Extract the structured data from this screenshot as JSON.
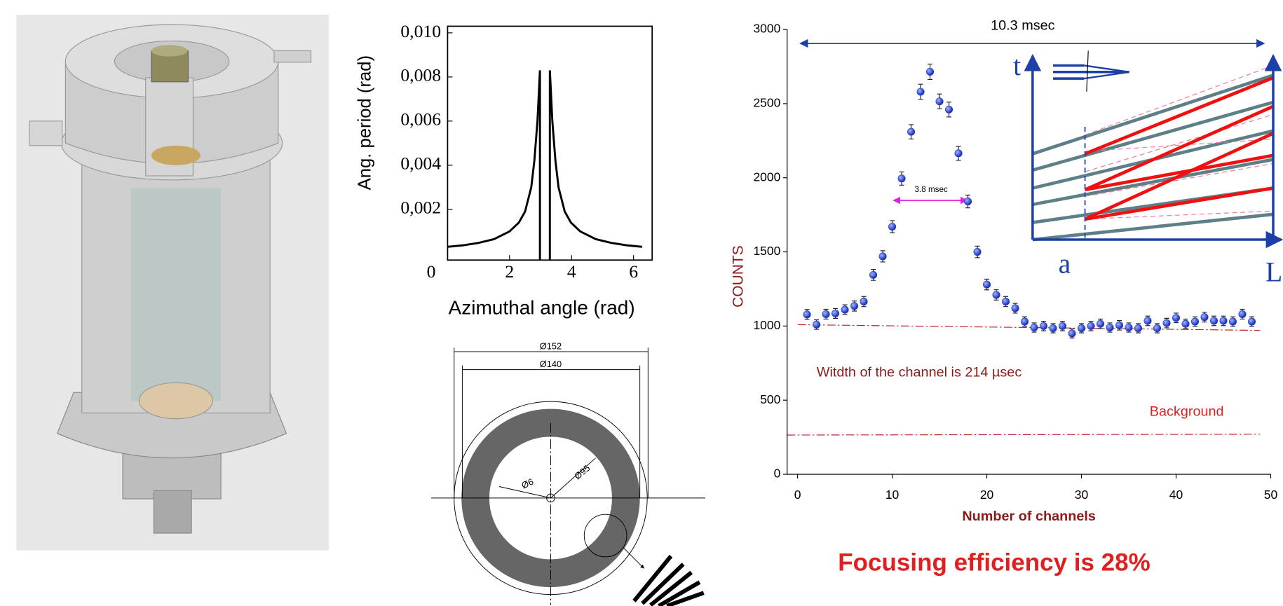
{
  "chart_data": [
    {
      "type": "line",
      "x_label": "Azimuthal angle (rad)",
      "y_label": "Ang. period (rad)",
      "x": [
        0,
        0.5,
        1,
        1.5,
        2,
        2.3,
        2.5,
        2.7,
        2.8,
        2.9,
        2.98,
        2.98,
        3.14,
        3.3,
        3.3,
        3.38,
        3.48,
        3.58,
        3.78,
        3.98,
        4.28,
        4.78,
        5.28,
        5.78,
        6.28
      ],
      "series": [
        {
          "color": "#000000",
          "values": [
            0.0003,
            0.00037,
            0.00048,
            0.00065,
            0.001,
            0.0014,
            0.0019,
            0.003,
            0.0042,
            0.006,
            0.0083,
            -0.0003,
            null,
            -0.0003,
            0.0083,
            0.006,
            0.0042,
            0.003,
            0.0019,
            0.0014,
            0.001,
            0.00065,
            0.00048,
            0.00037,
            0.0003
          ]
        }
      ],
      "xlim": [
        0,
        6.6
      ],
      "ylim": [
        -0.0003,
        0.0103
      ],
      "xticks": [
        0,
        2,
        4,
        6
      ],
      "yticks": [
        {
          "value": 0.002,
          "label": "0,002"
        },
        {
          "value": 0.004,
          "label": "0,004"
        },
        {
          "value": 0.006,
          "label": "0,006"
        },
        {
          "value": 0.008,
          "label": "0,008"
        },
        {
          "value": 0.01,
          "label": "0,010"
        }
      ]
    },
    {
      "type": "scatter",
      "x_label": "Number of channels",
      "y_label": "COUNTS",
      "x": [
        1,
        2,
        3,
        4,
        5,
        6,
        7,
        8,
        9,
        10,
        11,
        12,
        13,
        14,
        15,
        16,
        17,
        18,
        19,
        20,
        21,
        22,
        23,
        24,
        25,
        26,
        27,
        28,
        29,
        30,
        31,
        32,
        33,
        34,
        35,
        36,
        37,
        38,
        39,
        40,
        41,
        42,
        43,
        44,
        45,
        46,
        47,
        48
      ],
      "series": [
        {
          "color": "#1f3fd6",
          "values": [
            1078,
            1010,
            1080,
            1085,
            1110,
            1135,
            1165,
            1345,
            1470,
            1670,
            1995,
            2310,
            2580,
            2715,
            2515,
            2460,
            2165,
            1840,
            1500,
            1280,
            1210,
            1165,
            1120,
            1030,
            990,
            1000,
            985,
            1000,
            950,
            985,
            1000,
            1015,
            990,
            1005,
            990,
            985,
            1035,
            985,
            1020,
            1055,
            1015,
            1030,
            1060,
            1035,
            1035,
            1030,
            1080,
            1030
          ],
          "errors": [
            33,
            32,
            33,
            33,
            33,
            34,
            34,
            37,
            38,
            41,
            45,
            48,
            51,
            52,
            50,
            50,
            47,
            43,
            39,
            36,
            35,
            34,
            33,
            32,
            31,
            32,
            31,
            32,
            31,
            31,
            32,
            32,
            31,
            32,
            31,
            31,
            32,
            31,
            32,
            32,
            32,
            32,
            33,
            32,
            32,
            32,
            33,
            32
          ]
        }
      ],
      "xlim": [
        -1.1,
        50
      ],
      "ylim": [
        0,
        3000
      ],
      "xticks": [
        0,
        10,
        20,
        30,
        40,
        50
      ],
      "yticks": [
        0,
        500,
        1000,
        1500,
        2000,
        2500,
        3000
      ],
      "annotations": [
        "10.3 msec",
        "3.8 msec",
        "Witdth of the channel is  214 µsec",
        "Background"
      ],
      "inset_labels": [
        "t",
        "a",
        "L"
      ]
    }
  ],
  "diagram": {
    "labels": [
      "Ø152",
      "Ø140",
      "Ø6",
      "Ø95"
    ]
  },
  "caption": "Focusing efficiency is 28%"
}
